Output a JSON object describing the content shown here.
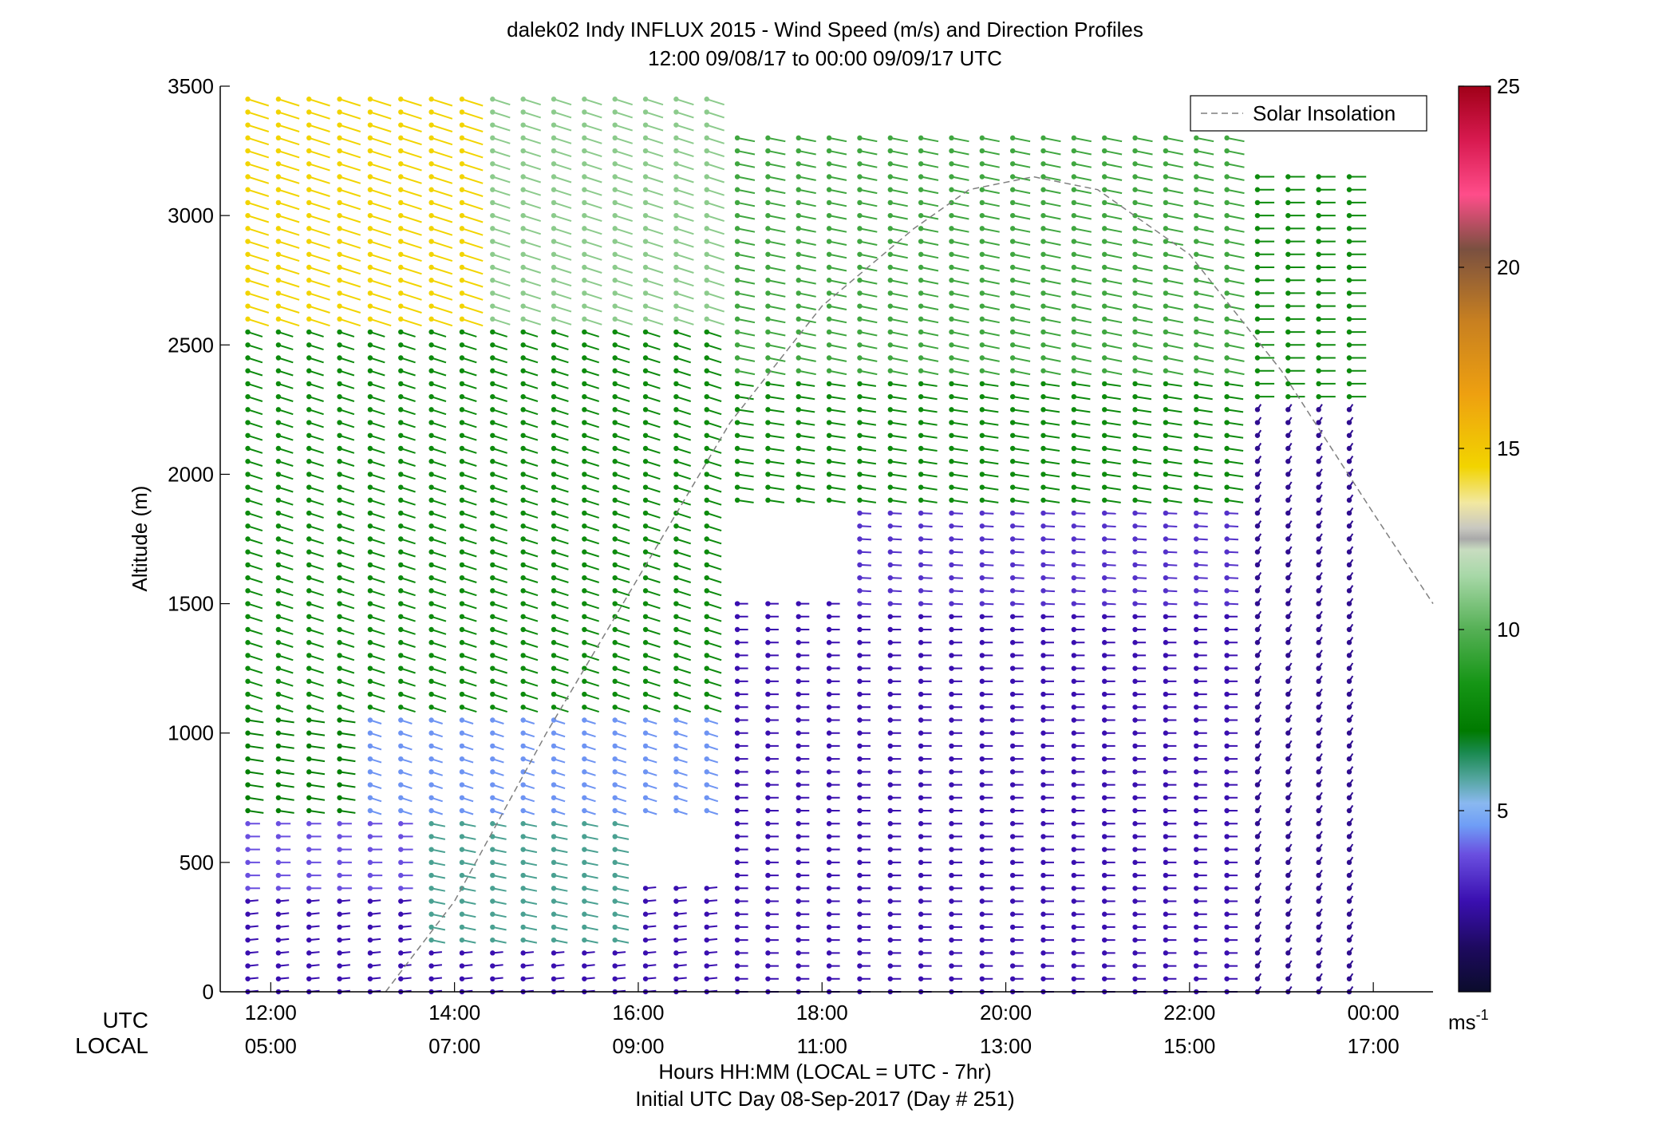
{
  "chart_data": {
    "type": "wind-barb-profile",
    "title": "dalek02 Indy INFLUX 2015 - Wind Speed (m/s) and Direction Profiles",
    "subtitle": "12:00 09/08/17 to 00:00 09/09/17  UTC",
    "ylabel": "Altitude (m)",
    "xlabel": "Hours HH:MM  (LOCAL = UTC - 7hr)",
    "xlabel2": "Initial UTC Day 08-Sep-2017 (Day # 251)",
    "utc_label": "UTC",
    "local_label": "LOCAL",
    "x_unit": "hours UTC",
    "xlim": [
      11.45,
      24.65
    ],
    "ylim": [
      0,
      3500
    ],
    "ytick_values": [
      0,
      500,
      1000,
      1500,
      2000,
      2500,
      3000,
      3500
    ],
    "xtick_values": [
      12,
      14,
      16,
      18,
      20,
      22,
      24
    ],
    "xtick_utc": [
      "12:00",
      "14:00",
      "16:00",
      "18:00",
      "20:00",
      "22:00",
      "00:00"
    ],
    "xtick_local": [
      "05:00",
      "07:00",
      "09:00",
      "11:00",
      "13:00",
      "15:00",
      "17:00"
    ],
    "colorbar": {
      "range": [
        0,
        25
      ],
      "tick_values": [
        5,
        10,
        15,
        20,
        25
      ],
      "unit_label": "ms",
      "unit_exponent": "-1",
      "stops": [
        {
          "v": 0,
          "c": "#0b0c2c"
        },
        {
          "v": 1.2,
          "c": "#1d0a5e"
        },
        {
          "v": 2.5,
          "c": "#3a0fb0"
        },
        {
          "v": 3.8,
          "c": "#6a4fe0"
        },
        {
          "v": 4.6,
          "c": "#6f9ef6"
        },
        {
          "v": 5.2,
          "c": "#8ab8f0"
        },
        {
          "v": 5.8,
          "c": "#5aa8a8"
        },
        {
          "v": 6.6,
          "c": "#1a8a50"
        },
        {
          "v": 7.2,
          "c": "#007a00"
        },
        {
          "v": 8.5,
          "c": "#159515"
        },
        {
          "v": 10,
          "c": "#55b055"
        },
        {
          "v": 11.5,
          "c": "#a8d8a8"
        },
        {
          "v": 12.2,
          "c": "#c8dcc0"
        },
        {
          "v": 12.5,
          "c": "#a9a9a9"
        },
        {
          "v": 12.8,
          "c": "#c8c8c0"
        },
        {
          "v": 13.5,
          "c": "#f2e8a0"
        },
        {
          "v": 14.5,
          "c": "#f2d400"
        },
        {
          "v": 16.5,
          "c": "#eea010"
        },
        {
          "v": 18.5,
          "c": "#c88020"
        },
        {
          "v": 20.5,
          "c": "#7a5040"
        },
        {
          "v": 22,
          "c": "#ff4d8a"
        },
        {
          "v": 23.5,
          "c": "#d81a50"
        },
        {
          "v": 25,
          "c": "#a00018"
        }
      ]
    },
    "legend": {
      "label": "Solar Insolation",
      "placement": "top-right",
      "style": "dashed",
      "color": "#7f7f7f"
    },
    "solar_insolation_curve": {
      "hours": [
        13.25,
        14.0,
        15.0,
        16.0,
        17.0,
        18.0,
        19.0,
        19.6,
        20.3,
        21.0,
        22.0,
        23.0,
        24.0,
        24.65
      ],
      "altitudes": [
        0,
        350,
        1000,
        1600,
        2200,
        2650,
        2950,
        3100,
        3150,
        3100,
        2850,
        2400,
        1850,
        1500
      ]
    },
    "profile_columns": {
      "start_hour": 11.75,
      "end_hour": 24.0,
      "step_hours": 0.333,
      "altitude_step_m": 50
    },
    "wind_regimes": [
      {
        "z_min": 0,
        "z_max": 400,
        "speed_ms": 2.5,
        "direction_deg": 260,
        "hour_min": 11.75,
        "hour_max": 17.0
      },
      {
        "z_min": 400,
        "z_max": 700,
        "speed_ms": 3.8,
        "direction_deg": 270,
        "hour_min": 11.75,
        "hour_max": 13.5
      },
      {
        "z_min": 200,
        "z_max": 700,
        "speed_ms": 6.0,
        "direction_deg": 290,
        "hour_min": 13.5,
        "hour_max": 16.0
      },
      {
        "z_min": 700,
        "z_max": 1070,
        "speed_ms": 7.5,
        "direction_deg": 285,
        "hour_min": 11.75,
        "hour_max": 15.5
      },
      {
        "z_min": 700,
        "z_max": 1500,
        "speed_ms": 4.5,
        "direction_deg": 300,
        "hour_min": 13.0,
        "hour_max": 17.0
      },
      {
        "z_min": 1100,
        "z_max": 2600,
        "speed_ms": 8.0,
        "direction_deg": 300,
        "hour_min": 11.75,
        "hour_max": 17.0
      },
      {
        "z_min": 2600,
        "z_max": 3480,
        "speed_ms": 14.5,
        "direction_deg": 300,
        "hour_min": 11.75,
        "hour_max": 14.2
      },
      {
        "z_min": 2600,
        "z_max": 3450,
        "speed_ms": 11.0,
        "direction_deg": 300,
        "hour_min": 14.2,
        "hour_max": 17.0
      },
      {
        "z_min": 0,
        "z_max": 1500,
        "speed_ms": 2.5,
        "direction_deg": 270,
        "hour_min": 17.0,
        "hour_max": 22.5
      },
      {
        "z_min": 1500,
        "z_max": 2100,
        "speed_ms": 3.2,
        "direction_deg": 275,
        "hour_min": 18.2,
        "hour_max": 22.5
      },
      {
        "z_min": 1900,
        "z_max": 2400,
        "speed_ms": 8.0,
        "direction_deg": 285,
        "hour_min": 17.0,
        "hour_max": 22.5
      },
      {
        "z_min": 2400,
        "z_max": 3300,
        "speed_ms": 9.5,
        "direction_deg": 290,
        "hour_min": 17.0,
        "hour_max": 22.5
      },
      {
        "z_min": 0,
        "z_max": 2300,
        "speed_ms": 2.0,
        "direction_deg": 200,
        "hour_min": 22.5,
        "hour_max": 24.0
      },
      {
        "z_min": 2300,
        "z_max": 3150,
        "speed_ms": 8.0,
        "direction_deg": 270,
        "hour_min": 22.5,
        "hour_max": 24.0
      }
    ]
  }
}
